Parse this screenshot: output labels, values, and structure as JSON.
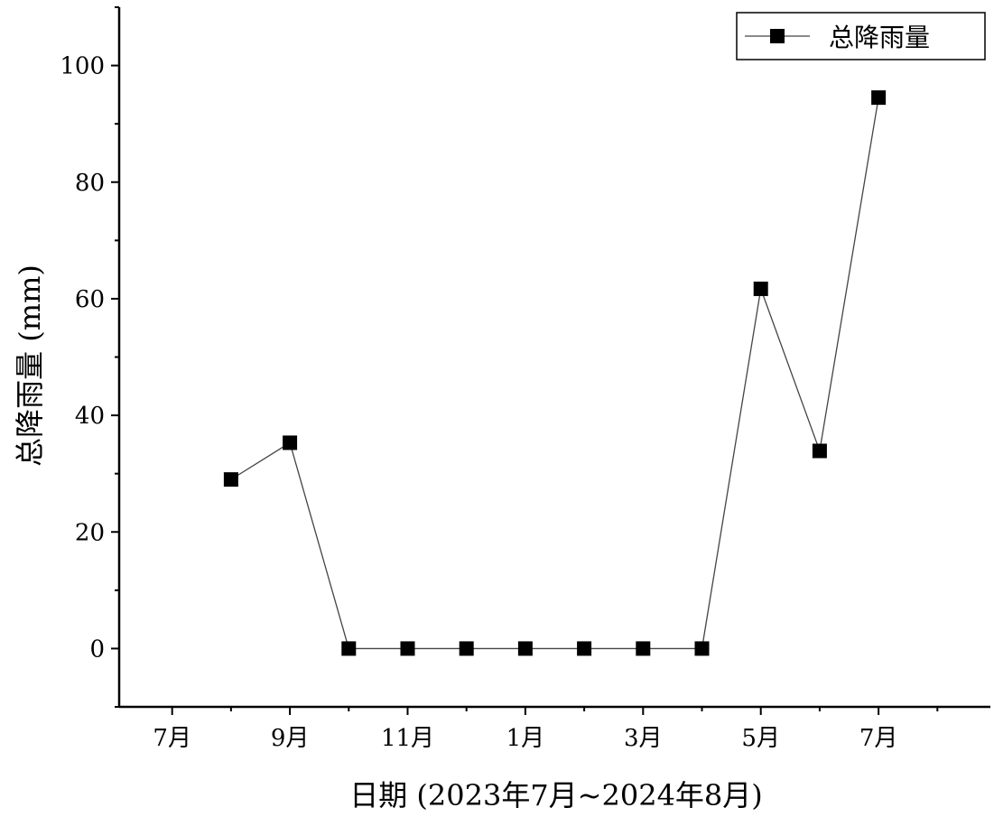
{
  "chart_data": {
    "type": "line",
    "xlabel": "日期 (2023年7月~2024年8月)",
    "ylabel": "总降雨量 (mm)",
    "x_tick_labels": [
      "7月",
      "9月",
      "11月",
      "1月",
      "3月",
      "5月",
      "7月"
    ],
    "x_tick_indices": [
      0,
      2,
      4,
      6,
      8,
      10,
      12
    ],
    "x_range": [
      -0.9,
      13.9
    ],
    "ylim": [
      -10,
      110
    ],
    "y_ticks": [
      0,
      20,
      40,
      60,
      80,
      100
    ],
    "legend": "top-right",
    "grid": false,
    "colors": {
      "series": "#000000",
      "line": "#444444"
    },
    "series": [
      {
        "name": "总降雨量",
        "x": [
          "2023-08",
          "2023-09",
          "2023-10",
          "2023-11",
          "2023-12",
          "2024-01",
          "2024-02",
          "2024-03",
          "2024-04",
          "2024-05",
          "2024-06",
          "2024-07"
        ],
        "values": [
          29,
          35.3,
          0,
          0,
          0,
          0,
          0,
          0,
          0,
          61.7,
          33.9,
          94.5
        ],
        "marker": "square"
      }
    ]
  }
}
